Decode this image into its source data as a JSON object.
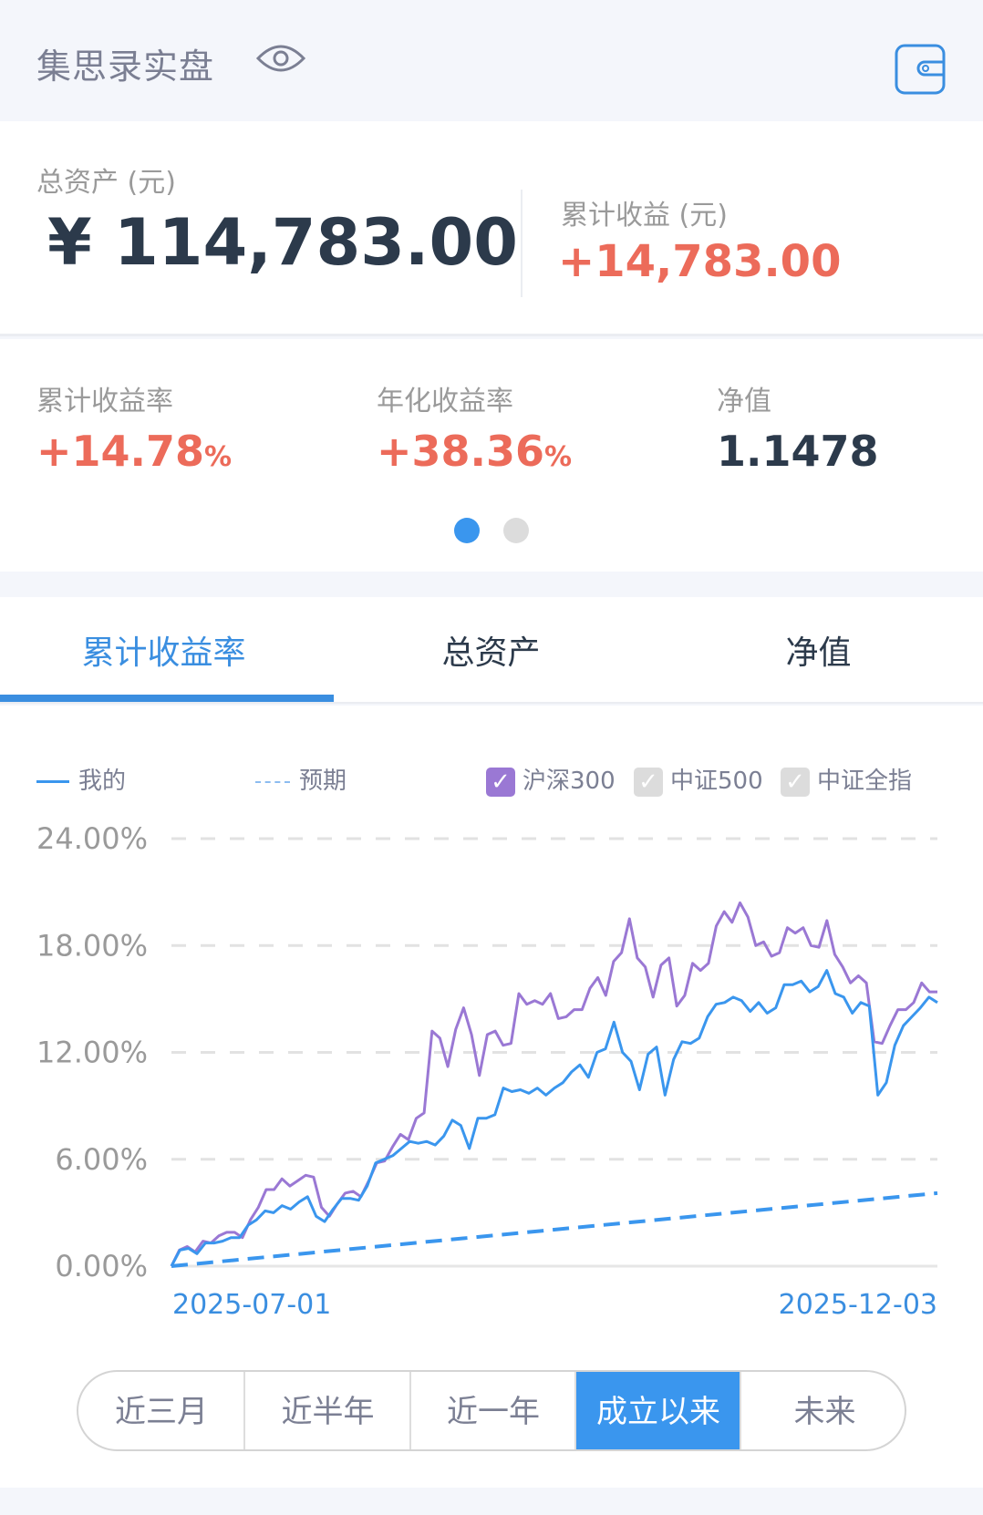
{
  "header": {
    "title": "集思录实盘",
    "eye_icon": "eye-icon",
    "wallet_icon": "wallet-icon"
  },
  "summary": {
    "total_assets_label": "总资产 (元)",
    "total_assets_value": "¥ 114,783.00",
    "cum_profit_label": "累计收益 (元)",
    "cum_profit_value": "+14,783.00"
  },
  "metrics": [
    {
      "label": "累计收益率",
      "value": "+14.78",
      "unit": "%"
    },
    {
      "label": "年化收益率",
      "value": "+38.36",
      "unit": "%"
    },
    {
      "label": "净值",
      "value": "1.1478"
    }
  ],
  "pager": {
    "pages": 2,
    "active": 1
  },
  "tabs": [
    {
      "label": "累计收益率",
      "active": true
    },
    {
      "label": "总资产"
    },
    {
      "label": "净值"
    }
  ],
  "legend": {
    "mine": "我的",
    "expected": "预期",
    "bench": [
      {
        "label": "沪深300",
        "checked": true
      },
      {
        "label": "中证500",
        "checked": false
      },
      {
        "label": "中证全指",
        "checked": false
      }
    ]
  },
  "ranges": [
    {
      "label": "近三月"
    },
    {
      "label": "近半年"
    },
    {
      "label": "近一年"
    },
    {
      "label": "成立以来",
      "active": true
    },
    {
      "label": "未来"
    }
  ],
  "colors": {
    "accent": "#3a96ee",
    "up": "#ec6b5a",
    "csi300": "#9a78d4",
    "dark": "#2c3a4b"
  },
  "chart_data": {
    "type": "line",
    "x_start": "2025-07-01",
    "x_end": "2025-12-03",
    "ylim": [
      0,
      24
    ],
    "y_ticks": [
      "0.00%",
      "6.00%",
      "12.00%",
      "18.00%",
      "24.00%"
    ],
    "grid": true,
    "legend": "top",
    "series": [
      {
        "name": "我的",
        "style": "solid",
        "color": "#3a96ee",
        "values": [
          0,
          0.9,
          1.0,
          0.7,
          1.3,
          1.3,
          1.4,
          1.6,
          1.6,
          2.3,
          2.6,
          3.1,
          3.0,
          3.4,
          3.2,
          3.6,
          3.9,
          2.8,
          2.5,
          3.2,
          3.8,
          3.8,
          3.7,
          4.5,
          5.8,
          6.0,
          6.2,
          6.6,
          7.0,
          6.9,
          7.0,
          6.8,
          7.3,
          8.2,
          7.9,
          6.6,
          8.3,
          8.3,
          8.5,
          10.0,
          9.8,
          9.9,
          9.7,
          10.0,
          9.6,
          10.0,
          10.3,
          10.9,
          11.3,
          10.6,
          12.0,
          12.2,
          13.7,
          12.0,
          11.5,
          9.9,
          11.9,
          12.3,
          9.6,
          11.6,
          12.6,
          12.5,
          12.8,
          14.0,
          14.7,
          14.8,
          15.1,
          14.9,
          14.3,
          14.8,
          14.2,
          14.5,
          15.8,
          15.8,
          16.0,
          15.4,
          15.7,
          16.6,
          15.3,
          15.1,
          14.2,
          14.8,
          14.6,
          9.6,
          10.3,
          12.4,
          13.5,
          14.0,
          14.5,
          15.1,
          14.8
        ]
      },
      {
        "name": "沪深300",
        "style": "solid",
        "color": "#9a78d4",
        "values": [
          0,
          0.9,
          1.1,
          0.8,
          1.4,
          1.3,
          1.7,
          1.9,
          1.9,
          1.6,
          2.6,
          3.3,
          4.3,
          4.3,
          4.9,
          4.5,
          4.8,
          5.1,
          5.0,
          3.3,
          2.8,
          3.5,
          4.1,
          4.2,
          3.9,
          4.8,
          5.8,
          5.9,
          6.7,
          7.4,
          7.1,
          8.3,
          8.6,
          13.2,
          12.8,
          11.2,
          13.3,
          14.5,
          13.0,
          10.7,
          13.0,
          13.2,
          12.4,
          12.5,
          15.3,
          14.7,
          14.9,
          14.7,
          15.3,
          13.9,
          14.0,
          14.4,
          14.4,
          15.6,
          16.2,
          15.2,
          17.1,
          17.6,
          19.5,
          17.3,
          16.8,
          15.1,
          16.9,
          17.3,
          14.6,
          15.2,
          17.0,
          16.6,
          17.0,
          19.1,
          19.9,
          19.3,
          20.4,
          19.6,
          18.0,
          18.2,
          17.4,
          17.6,
          19.0,
          18.7,
          19.0,
          18.0,
          17.9,
          19.4,
          17.5,
          16.8,
          15.9,
          16.3,
          15.9,
          12.6,
          12.5,
          13.5,
          14.4,
          14.4,
          14.8,
          15.9,
          15.4,
          15.4
        ]
      },
      {
        "name": "预期",
        "style": "dashed",
        "color": "#3a96ee",
        "values": [
          0,
          4.1
        ]
      }
    ]
  }
}
